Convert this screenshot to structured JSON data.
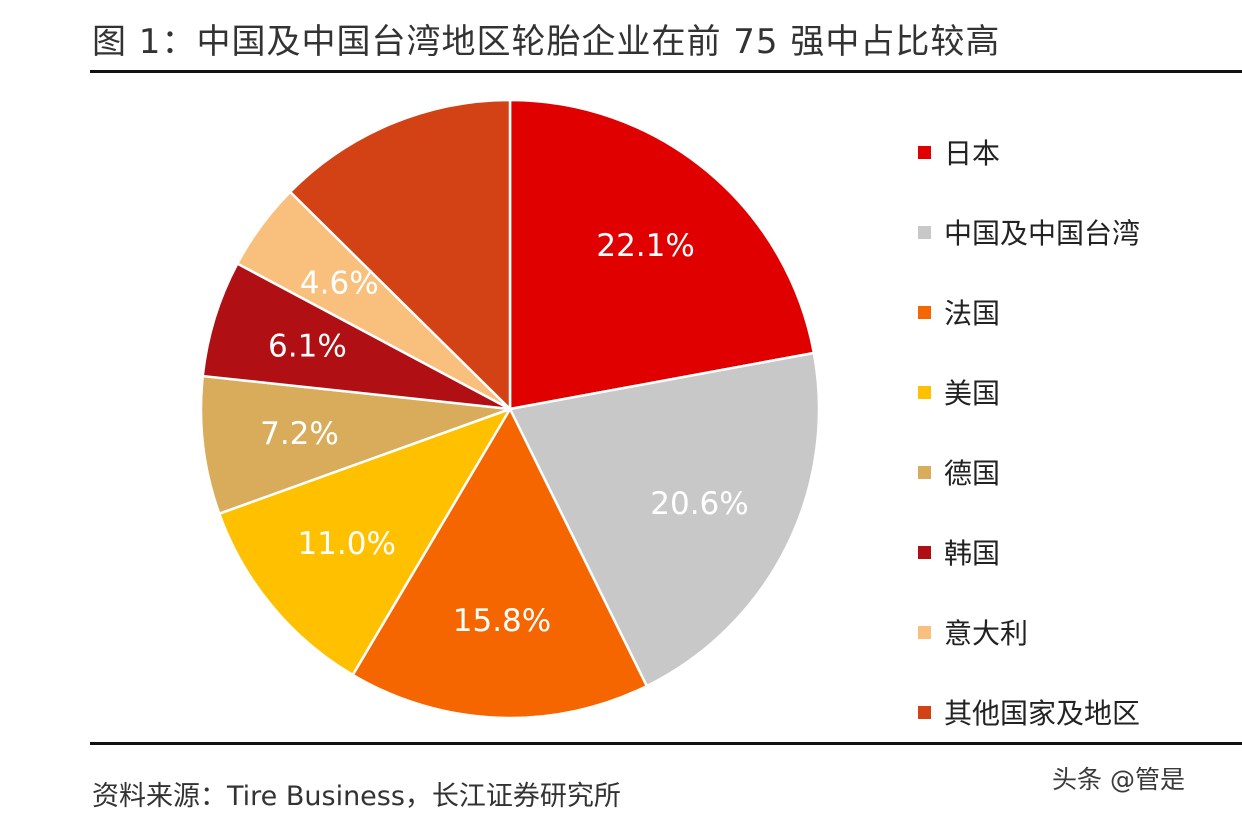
{
  "header": {
    "title": "图 1：中国及中国台湾地区轮胎企业在前 75 强中占比较高"
  },
  "chart_data": {
    "type": "pie",
    "title": "图 1：中国及中国台湾地区轮胎企业在前 75 强中占比较高",
    "start_angle_deg": 0,
    "direction": "clockwise",
    "legend_position": "right",
    "slices": [
      {
        "name": "日本",
        "value": 22.1,
        "label": "22.1%",
        "color": "#E00000"
      },
      {
        "name": "中国及中国台湾",
        "value": 20.6,
        "label": "20.6%",
        "color": "#C8C8C8"
      },
      {
        "name": "法国",
        "value": 15.8,
        "label": "15.8%",
        "color": "#F56600"
      },
      {
        "name": "美国",
        "value": 11.0,
        "label": "11.0%",
        "color": "#FFC000"
      },
      {
        "name": "德国",
        "value": 7.2,
        "label": "7.2%",
        "color": "#D9AC5C"
      },
      {
        "name": "韩国",
        "value": 6.1,
        "label": "6.1%",
        "color": "#B00F14"
      },
      {
        "name": "意大利",
        "value": 4.6,
        "label": "4.6%",
        "color": "#F8C07C"
      },
      {
        "name": "其他国家及地区",
        "value": 12.6,
        "label": "",
        "color": "#D24214"
      }
    ]
  },
  "legend": {
    "items": [
      {
        "label": "日本",
        "color": "#E00000"
      },
      {
        "label": "中国及中国台湾",
        "color": "#C8C8C8"
      },
      {
        "label": "法国",
        "color": "#F56600"
      },
      {
        "label": "美国",
        "color": "#FFC000"
      },
      {
        "label": "德国",
        "color": "#D9AC5C"
      },
      {
        "label": "韩国",
        "color": "#B00F14"
      },
      {
        "label": "意大利",
        "color": "#F8C07C"
      },
      {
        "label": "其他国家及地区",
        "color": "#D24214"
      }
    ]
  },
  "footer": {
    "source": "资料来源：Tire Business，长江证券研究所",
    "watermark": "头条 @管是"
  }
}
